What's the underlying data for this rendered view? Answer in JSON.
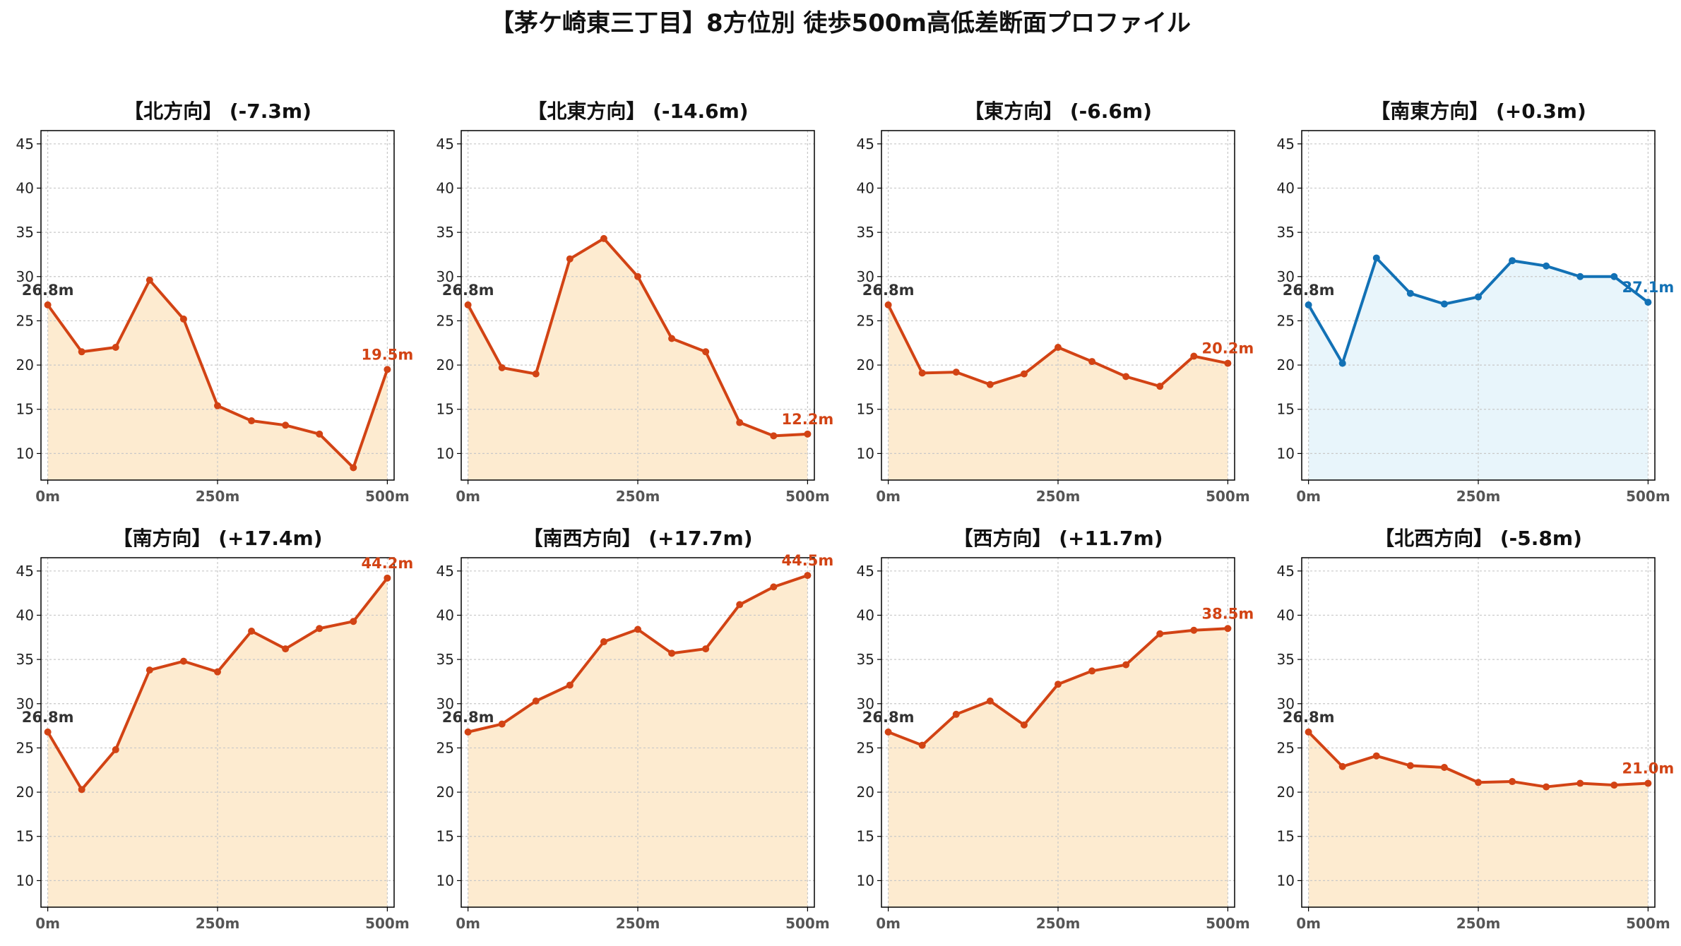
{
  "title": "【茅ケ崎東三丁目】8方位別 徒歩500m高低差断面プロファイル",
  "colors": {
    "down": "#d24314",
    "down_fill": "#fdebd0",
    "up": "#1271b5",
    "up_fill": "#e8f5fb",
    "start_label": "#333333"
  },
  "chart_data": [
    {
      "type": "area",
      "title": "【北方向】 (-7.3m)",
      "x": [
        0,
        50,
        100,
        150,
        200,
        250,
        300,
        350,
        400,
        450,
        500
      ],
      "values": [
        26.8,
        21.5,
        22.0,
        29.6,
        25.2,
        15.4,
        13.7,
        13.2,
        12.2,
        8.4,
        19.5
      ],
      "start_label": "26.8m",
      "end_label": "19.5m",
      "trend": "down",
      "xticks": [
        "0m",
        "250m",
        "500m"
      ],
      "yticks": [
        10,
        15,
        20,
        25,
        30,
        35,
        40,
        45
      ],
      "ylim": [
        7,
        46.5
      ],
      "xlim": [
        -10,
        510
      ],
      "grid": true
    },
    {
      "type": "area",
      "title": "【北東方向】 (-14.6m)",
      "x": [
        0,
        50,
        100,
        150,
        200,
        250,
        300,
        350,
        400,
        450,
        500
      ],
      "values": [
        26.8,
        19.7,
        19.0,
        32.0,
        34.3,
        30.0,
        23.0,
        21.5,
        13.5,
        12.0,
        12.2
      ],
      "start_label": "26.8m",
      "end_label": "12.2m",
      "trend": "down",
      "xticks": [
        "0m",
        "250m",
        "500m"
      ],
      "yticks": [
        10,
        15,
        20,
        25,
        30,
        35,
        40,
        45
      ],
      "ylim": [
        7,
        46.5
      ],
      "xlim": [
        -10,
        510
      ],
      "grid": true
    },
    {
      "type": "area",
      "title": "【東方向】 (-6.6m)",
      "x": [
        0,
        50,
        100,
        150,
        200,
        250,
        300,
        350,
        400,
        450,
        500
      ],
      "values": [
        26.8,
        19.1,
        19.2,
        17.8,
        19.0,
        22.0,
        20.4,
        18.7,
        17.6,
        21.0,
        20.2
      ],
      "start_label": "26.8m",
      "end_label": "20.2m",
      "trend": "down",
      "xticks": [
        "0m",
        "250m",
        "500m"
      ],
      "yticks": [
        10,
        15,
        20,
        25,
        30,
        35,
        40,
        45
      ],
      "ylim": [
        7,
        46.5
      ],
      "xlim": [
        -10,
        510
      ],
      "grid": true
    },
    {
      "type": "area",
      "title": "【南東方向】 (+0.3m)",
      "x": [
        0,
        50,
        100,
        150,
        200,
        250,
        300,
        350,
        400,
        450,
        500
      ],
      "values": [
        26.8,
        20.2,
        32.1,
        28.1,
        26.9,
        27.7,
        31.8,
        31.2,
        30.0,
        30.0,
        27.1
      ],
      "start_label": "26.8m",
      "end_label": "27.1m",
      "trend": "up",
      "xticks": [
        "0m",
        "250m",
        "500m"
      ],
      "yticks": [
        10,
        15,
        20,
        25,
        30,
        35,
        40,
        45
      ],
      "ylim": [
        7,
        46.5
      ],
      "xlim": [
        -10,
        510
      ],
      "grid": true
    },
    {
      "type": "area",
      "title": "【南方向】 (+17.4m)",
      "x": [
        0,
        50,
        100,
        150,
        200,
        250,
        300,
        350,
        400,
        450,
        500
      ],
      "values": [
        26.8,
        20.3,
        24.8,
        33.8,
        34.8,
        33.6,
        38.2,
        36.2,
        38.5,
        39.3,
        44.2
      ],
      "start_label": "26.8m",
      "end_label": "44.2m",
      "trend": "down",
      "xticks": [
        "0m",
        "250m",
        "500m"
      ],
      "yticks": [
        10,
        15,
        20,
        25,
        30,
        35,
        40,
        45
      ],
      "ylim": [
        7,
        46.5
      ],
      "xlim": [
        -10,
        510
      ],
      "grid": true
    },
    {
      "type": "area",
      "title": "【南西方向】 (+17.7m)",
      "x": [
        0,
        50,
        100,
        150,
        200,
        250,
        300,
        350,
        400,
        450,
        500
      ],
      "values": [
        26.8,
        27.7,
        30.3,
        32.1,
        37.0,
        38.4,
        35.7,
        36.2,
        41.2,
        43.2,
        44.5
      ],
      "start_label": "26.8m",
      "end_label": "44.5m",
      "trend": "down",
      "xticks": [
        "0m",
        "250m",
        "500m"
      ],
      "yticks": [
        10,
        15,
        20,
        25,
        30,
        35,
        40,
        45
      ],
      "ylim": [
        7,
        46.5
      ],
      "xlim": [
        -10,
        510
      ],
      "grid": true
    },
    {
      "type": "area",
      "title": "【西方向】 (+11.7m)",
      "x": [
        0,
        50,
        100,
        150,
        200,
        250,
        300,
        350,
        400,
        450,
        500
      ],
      "values": [
        26.8,
        25.3,
        28.8,
        30.3,
        27.6,
        32.2,
        33.7,
        34.4,
        37.9,
        38.3,
        38.5
      ],
      "start_label": "26.8m",
      "end_label": "38.5m",
      "trend": "down",
      "xticks": [
        "0m",
        "250m",
        "500m"
      ],
      "yticks": [
        10,
        15,
        20,
        25,
        30,
        35,
        40,
        45
      ],
      "ylim": [
        7,
        46.5
      ],
      "xlim": [
        -10,
        510
      ],
      "grid": true
    },
    {
      "type": "area",
      "title": "【北西方向】 (-5.8m)",
      "x": [
        0,
        50,
        100,
        150,
        200,
        250,
        300,
        350,
        400,
        450,
        500
      ],
      "values": [
        26.8,
        22.9,
        24.1,
        23.0,
        22.8,
        21.1,
        21.2,
        20.6,
        21.0,
        20.8,
        21.0
      ],
      "start_label": "26.8m",
      "end_label": "21.0m",
      "trend": "down",
      "xticks": [
        "0m",
        "250m",
        "500m"
      ],
      "yticks": [
        10,
        15,
        20,
        25,
        30,
        35,
        40,
        45
      ],
      "ylim": [
        7,
        46.5
      ],
      "xlim": [
        -10,
        510
      ],
      "grid": true
    }
  ]
}
